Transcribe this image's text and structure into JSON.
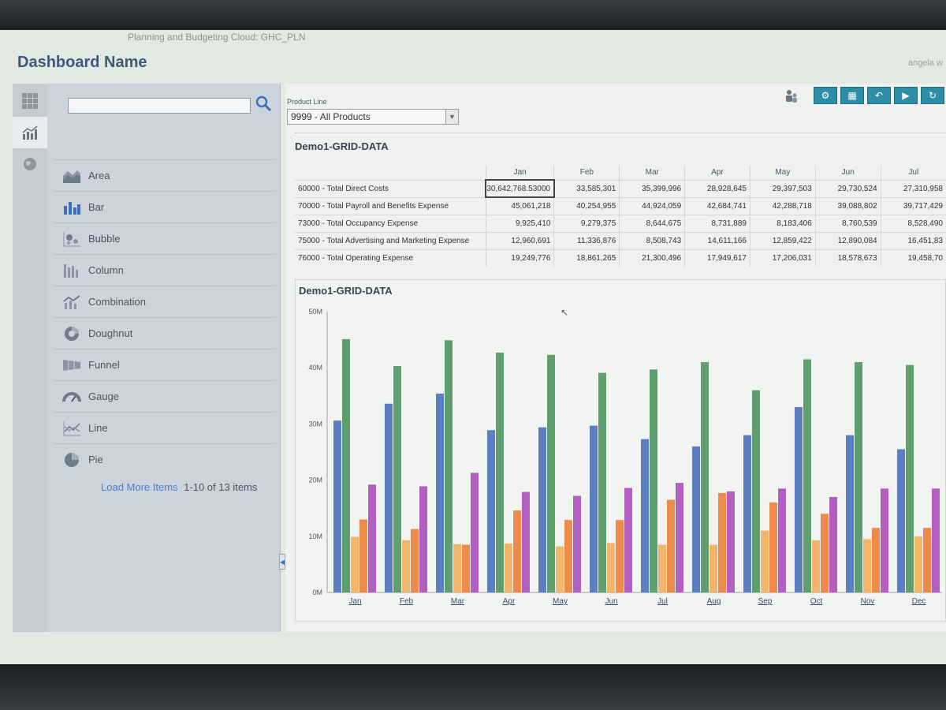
{
  "window": {
    "app_title": "Planning and Budgeting Cloud: GHC_PLN",
    "user": "angela w"
  },
  "dashboard": {
    "title": "Dashboard Name"
  },
  "palette": {
    "search_placeholder": "",
    "items": [
      {
        "label": "Area",
        "icon": "area-chart-icon"
      },
      {
        "label": "Bar",
        "icon": "bar-chart-icon"
      },
      {
        "label": "Bubble",
        "icon": "bubble-chart-icon"
      },
      {
        "label": "Column",
        "icon": "column-chart-icon"
      },
      {
        "label": "Combination",
        "icon": "combination-chart-icon"
      },
      {
        "label": "Doughnut",
        "icon": "doughnut-chart-icon"
      },
      {
        "label": "Funnel",
        "icon": "funnel-chart-icon"
      },
      {
        "label": "Gauge",
        "icon": "gauge-chart-icon"
      },
      {
        "label": "Line",
        "icon": "line-chart-icon"
      },
      {
        "label": "Pie",
        "icon": "pie-chart-icon"
      }
    ],
    "load_more": "Load More Items",
    "count": "1-10 of 13 items"
  },
  "filter": {
    "label": "Product Line",
    "value": "9999 - All Products"
  },
  "grid": {
    "title": "Demo1-GRID-DATA",
    "columns": [
      "Jan",
      "Feb",
      "Mar",
      "Apr",
      "May",
      "Jun",
      "Jul"
    ],
    "rows": [
      {
        "label": "60000 - Total Direct Costs",
        "values": [
          "30,642,768.53000",
          "33,585,301",
          "35,399,996",
          "28,928,645",
          "29,397,503",
          "29,730,524",
          "27,310,958"
        ]
      },
      {
        "label": "70000 - Total Payroll and Benefits Expense",
        "values": [
          "45,061,218",
          "40,254,955",
          "44,924,059",
          "42,684,741",
          "42,288,718",
          "39,088,802",
          "39,717,429"
        ]
      },
      {
        "label": "73000 - Total Occupancy Expense",
        "values": [
          "9,925,410",
          "9,279,375",
          "8,644,675",
          "8,731,889",
          "8,183,406",
          "8,760,539",
          "8,528,490"
        ]
      },
      {
        "label": "75000 - Total Advertising and Marketing Expense",
        "values": [
          "12,960,691",
          "11,336,876",
          "8,508,743",
          "14,611,166",
          "12,859,422",
          "12,890,084",
          "16,451,83"
        ]
      },
      {
        "label": "76000 - Total Operating Expense",
        "values": [
          "19,249,776",
          "18,861,265",
          "21,300,496",
          "17,949,617",
          "17,206,031",
          "18,578,673",
          "19,458,70"
        ]
      }
    ]
  },
  "chart_data": {
    "type": "bar",
    "title": "Demo1-GRID-DATA",
    "categories": [
      "Jan",
      "Feb",
      "Mar",
      "Apr",
      "May",
      "Jun",
      "Jul",
      "Aug",
      "Sep",
      "Oct",
      "Nov",
      "Dec"
    ],
    "y_ticks": [
      "0M",
      "10M",
      "20M",
      "30M",
      "40M",
      "50M"
    ],
    "ylim": [
      0,
      50
    ],
    "colors": [
      "#5b7fc0",
      "#5f9e6e",
      "#f4b56a",
      "#f08a4b",
      "#b35fc1"
    ],
    "series": [
      {
        "values": [
          30.6,
          33.6,
          35.4,
          28.9,
          29.4,
          29.7,
          27.3,
          26.0,
          28.0,
          33.0,
          28.0,
          25.5
        ]
      },
      {
        "values": [
          45.1,
          40.3,
          44.9,
          42.7,
          42.3,
          39.1,
          39.7,
          41.0,
          36.0,
          41.5,
          41.0,
          40.5
        ]
      },
      {
        "values": [
          9.9,
          9.3,
          8.6,
          8.7,
          8.2,
          8.8,
          8.5,
          8.5,
          11.0,
          9.3,
          9.5,
          10.0
        ]
      },
      {
        "values": [
          13.0,
          11.3,
          8.5,
          14.6,
          12.9,
          12.9,
          16.5,
          17.7,
          16.0,
          14.0,
          11.5,
          11.5
        ]
      },
      {
        "values": [
          19.2,
          18.9,
          21.3,
          17.9,
          17.2,
          18.6,
          19.5,
          18.0,
          18.5,
          17.0,
          18.5,
          18.5
        ]
      }
    ]
  }
}
